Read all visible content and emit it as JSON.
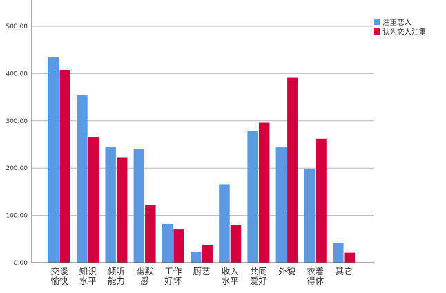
{
  "chart_data": {
    "type": "bar",
    "categories": [
      [
        "交谈",
        "愉快"
      ],
      [
        "知识",
        "水平"
      ],
      [
        "倾听",
        "能力"
      ],
      [
        "幽默",
        "感"
      ],
      [
        "工作",
        "好坏"
      ],
      [
        "厨艺"
      ],
      [
        "收入",
        "水平"
      ],
      [
        "共同",
        "爱好"
      ],
      [
        "外貌"
      ],
      [
        "衣着",
        "得体"
      ],
      [
        "其它"
      ]
    ],
    "series": [
      {
        "name": "注重恋人",
        "color": "#5b99e3",
        "values": [
          435,
          354,
          245,
          241,
          82,
          22,
          166,
          278,
          244,
          198,
          42
        ]
      },
      {
        "name": "认为恋人注重",
        "color": "#d2003c",
        "values": [
          408,
          266,
          223,
          122,
          70,
          38,
          80,
          296,
          391,
          262,
          21
        ]
      }
    ],
    "yticks": [
      "0.00",
      "100.00",
      "200.00",
      "300.00",
      "400.00",
      "500.00"
    ],
    "ylim": [
      0,
      500
    ],
    "grid": true,
    "legend_position": "top-right",
    "title": "",
    "xlabel": "",
    "ylabel": ""
  }
}
